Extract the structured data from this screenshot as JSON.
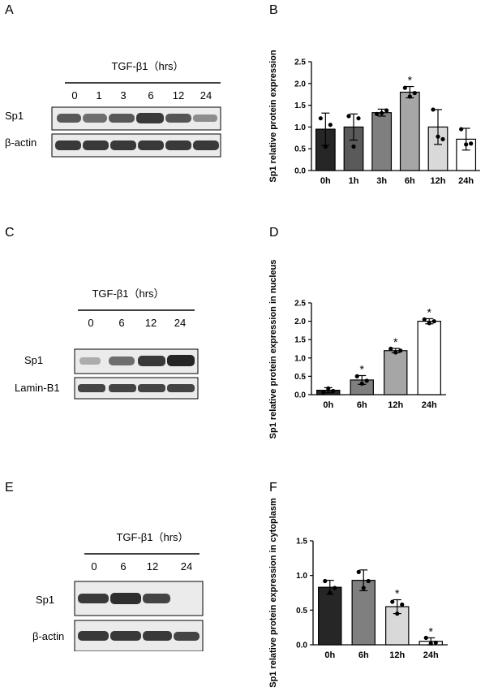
{
  "panels": {
    "A": {
      "letter": "A",
      "treatment_label": "TGF-β1（hrs）",
      "time_points": [
        "0",
        "1",
        "3",
        "6",
        "12",
        "24"
      ],
      "row_labels": [
        "Sp1",
        "β-actin"
      ],
      "band_intensity": {
        "Sp1": [
          0.7,
          0.6,
          0.7,
          0.85,
          0.72,
          0.45
        ],
        "β-actin": [
          0.85,
          0.85,
          0.85,
          0.85,
          0.85,
          0.85
        ]
      }
    },
    "C": {
      "letter": "C",
      "treatment_label": "TGF-β1（hrs）",
      "time_points": [
        "0",
        "6",
        "12",
        "24"
      ],
      "row_labels": [
        "Sp1",
        "Lamin-B1"
      ],
      "band_intensity": {
        "Sp1": [
          0.3,
          0.6,
          0.85,
          0.95
        ],
        "Lamin-B1": [
          0.8,
          0.8,
          0.8,
          0.8
        ]
      }
    },
    "E": {
      "letter": "E",
      "treatment_label": "TGF-β1（hrs）",
      "time_points": [
        "0",
        "6",
        "12",
        "24"
      ],
      "row_labels": [
        "Sp1",
        "β-actin"
      ],
      "band_intensity": {
        "Sp1": [
          0.85,
          0.9,
          0.8,
          0.0
        ],
        "β-actin": [
          0.85,
          0.85,
          0.85,
          0.8
        ]
      }
    }
  },
  "chart_data": [
    {
      "panel": "B",
      "letter": "B",
      "type": "bar",
      "categories": [
        "0h",
        "1h",
        "3h",
        "6h",
        "12h",
        "24h"
      ],
      "values": [
        0.95,
        1.0,
        1.33,
        1.8,
        1.0,
        0.72
      ],
      "errors": [
        0.37,
        0.3,
        0.08,
        0.13,
        0.4,
        0.25
      ],
      "points": [
        [
          1.2,
          0.55,
          1.05
        ],
        [
          1.25,
          0.55,
          1.2
        ],
        [
          1.3,
          1.32,
          1.38
        ],
        [
          1.9,
          1.7,
          1.78
        ],
        [
          1.4,
          0.78,
          0.72
        ],
        [
          0.95,
          0.6,
          0.62
        ]
      ],
      "colors": [
        "#262626",
        "#5a5a5a",
        "#7f7f7f",
        "#a6a6a6",
        "#d9d9d9",
        "#ffffff"
      ],
      "significant": [
        "",
        "",
        "",
        "*",
        "",
        ""
      ],
      "ylabel": "Sp1 relative protein expression",
      "ylim": [
        0,
        2.5
      ],
      "yticks": [
        "0.0",
        "0.5",
        "1.0",
        "1.5",
        "2.0",
        "2.5"
      ],
      "grid": false
    },
    {
      "panel": "D",
      "letter": "D",
      "type": "bar",
      "categories": [
        "0h",
        "6h",
        "12h",
        "24h"
      ],
      "values": [
        0.12,
        0.4,
        1.2,
        2.0
      ],
      "errors": [
        0.07,
        0.12,
        0.06,
        0.07
      ],
      "points": [
        [
          0.05,
          0.17,
          0.1
        ],
        [
          0.5,
          0.3,
          0.38
        ],
        [
          1.25,
          1.15,
          1.2
        ],
        [
          2.05,
          1.95,
          2.0
        ]
      ],
      "colors": [
        "#262626",
        "#7f7f7f",
        "#a6a6a6",
        "#ffffff"
      ],
      "significant": [
        "",
        "*",
        "*",
        "*"
      ],
      "ylabel": "Sp1 relative protein expression in nucleus",
      "ylim": [
        0,
        2.5
      ],
      "yticks": [
        "0.0",
        "0.5",
        "1.0",
        "1.5",
        "2.0",
        "2.5"
      ],
      "grid": false
    },
    {
      "panel": "F",
      "letter": "F",
      "type": "bar",
      "categories": [
        "0h",
        "6h",
        "12h",
        "24h"
      ],
      "values": [
        0.83,
        0.93,
        0.55,
        0.05
      ],
      "errors": [
        0.1,
        0.15,
        0.1,
        0.05
      ],
      "points": [
        [
          0.92,
          0.75,
          0.82
        ],
        [
          1.05,
          0.82,
          0.92
        ],
        [
          0.62,
          0.45,
          0.58
        ],
        [
          0.1,
          0.02,
          0.03
        ]
      ],
      "colors": [
        "#262626",
        "#7f7f7f",
        "#d9d9d9",
        "#ffffff"
      ],
      "significant": [
        "",
        "",
        "*",
        "*"
      ],
      "ylabel": "Sp1 relative protein expression in cytoplasm",
      "ylim": [
        0,
        1.5
      ],
      "yticks": [
        "0.0",
        "0.5",
        "1.0",
        "1.5"
      ],
      "grid": false
    }
  ]
}
